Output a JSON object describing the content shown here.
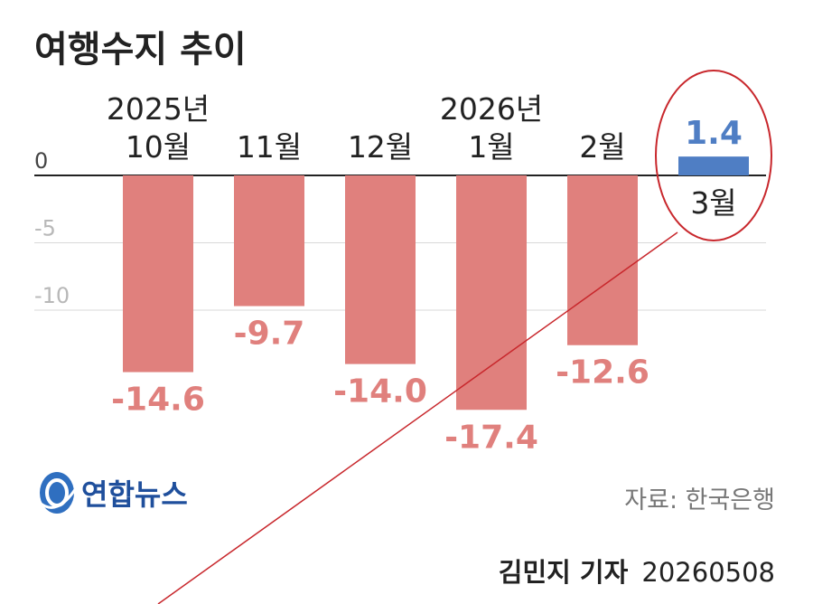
{
  "chart_data": {
    "type": "bar",
    "title": "여행수지 추이",
    "categories": [
      {
        "year": "2025년",
        "month": "10월"
      },
      {
        "year": "",
        "month": "11월"
      },
      {
        "year": "",
        "month": "12월"
      },
      {
        "year": "2026년",
        "month": "1월"
      },
      {
        "year": "",
        "month": "2월"
      },
      {
        "year": "",
        "month": "3월"
      }
    ],
    "values": [
      -14.6,
      -9.7,
      -14.0,
      -17.4,
      -12.6,
      1.4
    ],
    "value_labels": [
      "-14.6",
      "-9.7",
      "-14.0",
      "-17.4",
      "-12.6",
      "1.4"
    ],
    "y_ticks": [
      "0",
      "-5",
      "-10"
    ],
    "y_tick_values": [
      0,
      -5,
      -10
    ],
    "ylim": [
      -20,
      2
    ],
    "grid": true,
    "colors": {
      "negative": "#e0807d",
      "positive": "#4f7ec4",
      "highlight_circle": "#c8272c"
    },
    "highlight": "3월"
  },
  "source": "자료: 한국은행",
  "byline": {
    "reporter": "김민지 기자",
    "date": "20260508"
  },
  "logo": {
    "text": "연합뉴스",
    "icon": "yonhap-logo-icon"
  }
}
